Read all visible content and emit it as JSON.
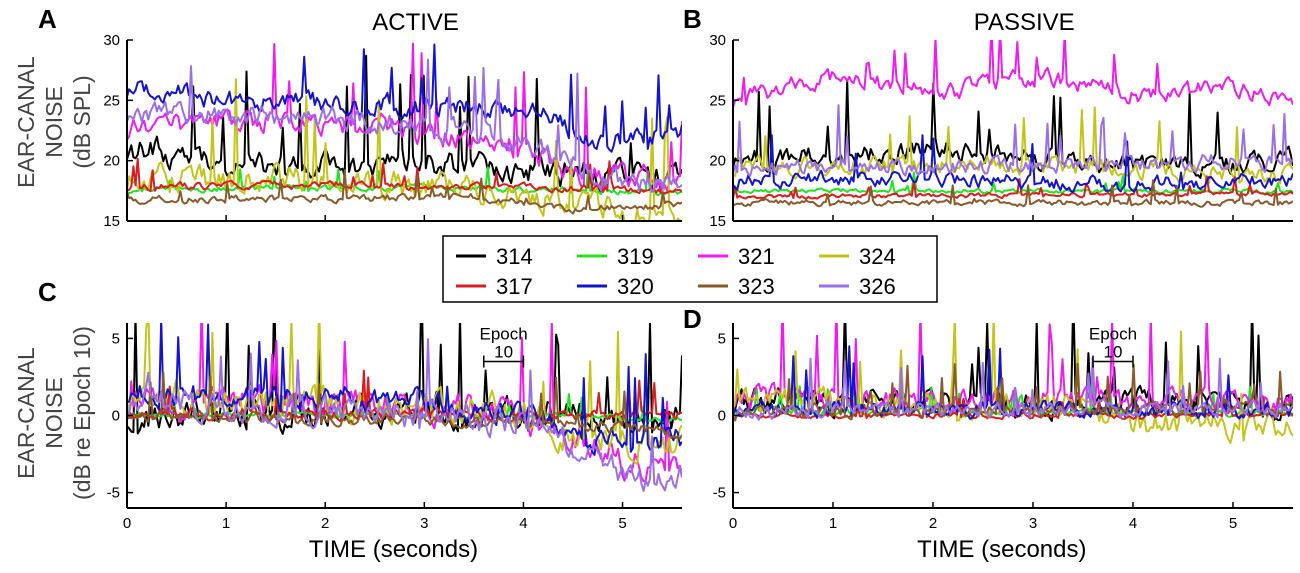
{
  "legend": {
    "entries": [
      {
        "label": "314",
        "color": "#000000"
      },
      {
        "label": "319",
        "color": "#1ee61e"
      },
      {
        "label": "321",
        "color": "#ee1cee"
      },
      {
        "label": "324",
        "color": "#c4c41a"
      },
      {
        "label": "317",
        "color": "#d81e1e"
      },
      {
        "label": "320",
        "color": "#1414cc"
      },
      {
        "label": "323",
        "color": "#8b5a2b"
      },
      {
        "label": "326",
        "color": "#9b6fe6"
      }
    ]
  },
  "y_axis_labels": {
    "top": {
      "line1": "EAR-CANAL",
      "line2": "NOISE",
      "line3": "(dB SPL)"
    },
    "bottom": {
      "line1": "EAR-CANAL",
      "line2": "NOISE",
      "line3": "(dB re Epoch 10)"
    }
  },
  "chart_data": [
    {
      "panel": "A",
      "type": "line",
      "title": "ACTIVE",
      "xlabel": "",
      "ylabel": "EAR-CANAL NOISE (dB SPL)",
      "xlim": [
        0,
        5.6
      ],
      "ylim": [
        15,
        30
      ],
      "xticks": [],
      "yticks": [
        15,
        20,
        25,
        30
      ],
      "yticklabels": [
        "15",
        "20",
        "25",
        "30"
      ],
      "series": [
        {
          "name": "314",
          "levels": [
            [
              0,
              21
            ],
            [
              1.5,
              19.5
            ],
            [
              3,
              20
            ],
            [
              4.2,
              19
            ],
            [
              5.6,
              18.5
            ]
          ],
          "noise": 1.8
        },
        {
          "name": "319",
          "levels": [
            [
              0,
              17.6
            ],
            [
              3,
              17.8
            ],
            [
              5.6,
              17.3
            ]
          ],
          "noise": 0.4
        },
        {
          "name": "321",
          "levels": [
            [
              0,
              22.5
            ],
            [
              1,
              23.5
            ],
            [
              2.5,
              23
            ],
            [
              4,
              21
            ],
            [
              4.5,
              19
            ],
            [
              5.6,
              18.5
            ]
          ],
          "noise": 1.6
        },
        {
          "name": "324",
          "levels": [
            [
              0,
              18.5
            ],
            [
              2,
              18.5
            ],
            [
              3.5,
              17.5
            ],
            [
              4.5,
              16.5
            ],
            [
              5.6,
              15.3
            ]
          ],
          "noise": 1.9
        },
        {
          "name": "317",
          "levels": [
            [
              0,
              17.8
            ],
            [
              2,
              18
            ],
            [
              4,
              17.8
            ],
            [
              5.6,
              17.5
            ]
          ],
          "noise": 0.5
        },
        {
          "name": "320",
          "levels": [
            [
              0,
              26
            ],
            [
              1,
              25
            ],
            [
              3,
              24.5
            ],
            [
              4.3,
              24
            ],
            [
              4.6,
              21.5
            ],
            [
              5.6,
              22.5
            ]
          ],
          "noise": 1.4
        },
        {
          "name": "323",
          "levels": [
            [
              0,
              16.8
            ],
            [
              2,
              16.8
            ],
            [
              3.5,
              17
            ],
            [
              4.5,
              16
            ],
            [
              5.6,
              16.3
            ]
          ],
          "noise": 0.5
        },
        {
          "name": "326",
          "levels": [
            [
              0,
              24
            ],
            [
              2,
              23.5
            ],
            [
              3,
              23
            ],
            [
              4,
              21.5
            ],
            [
              4.8,
              18.5
            ],
            [
              5.6,
              18
            ]
          ],
          "noise": 1.5
        }
      ]
    },
    {
      "panel": "B",
      "type": "line",
      "title": "PASSIVE",
      "xlabel": "",
      "ylabel": "",
      "xlim": [
        0,
        5.6
      ],
      "ylim": [
        15,
        30
      ],
      "xticks": [],
      "yticks": [
        15,
        20,
        25,
        30
      ],
      "yticklabels": [
        "15",
        "20",
        "25",
        "30"
      ],
      "series": [
        {
          "name": "314",
          "levels": [
            [
              0,
              20
            ],
            [
              2,
              21
            ],
            [
              4,
              19.5
            ],
            [
              5.6,
              20
            ]
          ],
          "noise": 1.4
        },
        {
          "name": "319",
          "levels": [
            [
              0,
              17.5
            ],
            [
              5.6,
              17.5
            ]
          ],
          "noise": 0.3
        },
        {
          "name": "321",
          "levels": [
            [
              0,
              25
            ],
            [
              1,
              27
            ],
            [
              2,
              25.5
            ],
            [
              3,
              27
            ],
            [
              4,
              25.5
            ],
            [
              5,
              26
            ],
            [
              5.6,
              25
            ]
          ],
          "noise": 1.2
        },
        {
          "name": "324",
          "levels": [
            [
              0,
              19.5
            ],
            [
              3,
              19.5
            ],
            [
              5.6,
              19
            ]
          ],
          "noise": 1.3
        },
        {
          "name": "317",
          "levels": [
            [
              0,
              17
            ],
            [
              5.6,
              17.3
            ]
          ],
          "noise": 0.3
        },
        {
          "name": "320",
          "levels": [
            [
              0,
              18.5
            ],
            [
              2,
              18.5
            ],
            [
              4,
              18
            ],
            [
              5.6,
              18.5
            ]
          ],
          "noise": 1.0
        },
        {
          "name": "323",
          "levels": [
            [
              0,
              16.5
            ],
            [
              5.6,
              16.5
            ]
          ],
          "noise": 0.4
        },
        {
          "name": "326",
          "levels": [
            [
              0,
              19.5
            ],
            [
              2,
              19.5
            ],
            [
              5.6,
              20
            ]
          ],
          "noise": 1.1
        }
      ]
    },
    {
      "panel": "C",
      "type": "line",
      "title": "",
      "xlabel": "TIME (seconds)",
      "ylabel": "EAR-CANAL NOISE (dB re Epoch 10)",
      "xlim": [
        0,
        5.6
      ],
      "ylim": [
        -6,
        6
      ],
      "xticks": [
        0,
        1,
        2,
        3,
        4,
        5
      ],
      "xticklabels": [
        "0",
        "1",
        "2",
        "3",
        "4",
        "5"
      ],
      "yticks": [
        -5,
        0,
        5
      ],
      "yticklabels": [
        "-5",
        "0",
        "5"
      ],
      "annotation": {
        "text_line1": "Epoch",
        "text_line2": "10",
        "x_start": 3.6,
        "x_end": 4.0,
        "y": 3.5
      },
      "series": [
        {
          "name": "314",
          "levels": [
            [
              0,
              0.2
            ],
            [
              3.5,
              0.3
            ],
            [
              4.5,
              0
            ],
            [
              5.6,
              -0.3
            ]
          ],
          "noise": 1.8
        },
        {
          "name": "319",
          "levels": [
            [
              0,
              0
            ],
            [
              4.5,
              0
            ],
            [
              5.6,
              -0.3
            ]
          ],
          "noise": 0.3
        },
        {
          "name": "321",
          "levels": [
            [
              0,
              1
            ],
            [
              3.5,
              0.5
            ],
            [
              4,
              0
            ],
            [
              4.6,
              -1.5
            ],
            [
              5,
              -3
            ],
            [
              5.6,
              -3
            ]
          ],
          "noise": 1.6
        },
        {
          "name": "324",
          "levels": [
            [
              0,
              1.2
            ],
            [
              3.5,
              0.5
            ],
            [
              4.5,
              -1
            ],
            [
              5.6,
              -2
            ]
          ],
          "noise": 1.8
        },
        {
          "name": "317",
          "levels": [
            [
              0,
              0.2
            ],
            [
              4.5,
              0
            ],
            [
              5.6,
              0
            ]
          ],
          "noise": 0.6
        },
        {
          "name": "320",
          "levels": [
            [
              0,
              1.5
            ],
            [
              3,
              0.8
            ],
            [
              4,
              0.3
            ],
            [
              4.6,
              -1.5
            ],
            [
              5.6,
              -1.5
            ]
          ],
          "noise": 1.3
        },
        {
          "name": "323",
          "levels": [
            [
              0,
              0
            ],
            [
              4.5,
              -0.5
            ],
            [
              5.6,
              -1.2
            ]
          ],
          "noise": 0.6
        },
        {
          "name": "326",
          "levels": [
            [
              0,
              1
            ],
            [
              3,
              0
            ],
            [
              4,
              -0.5
            ],
            [
              4.8,
              -3
            ],
            [
              5.2,
              -4.5
            ],
            [
              5.6,
              -4
            ]
          ],
          "noise": 1.4
        }
      ]
    },
    {
      "panel": "D",
      "type": "line",
      "title": "",
      "xlabel": "TIME (seconds)",
      "ylabel": "",
      "xlim": [
        0,
        5.6
      ],
      "ylim": [
        -6,
        6
      ],
      "xticks": [
        0,
        1,
        2,
        3,
        4,
        5
      ],
      "xticklabels": [
        "0",
        "1",
        "2",
        "3",
        "4",
        "5"
      ],
      "yticks": [
        -5,
        0,
        5
      ],
      "yticklabels": [
        "-5",
        "0",
        "5"
      ],
      "annotation": {
        "text_line1": "Epoch",
        "text_line2": "10",
        "x_start": 3.6,
        "x_end": 4.0,
        "y": 3.5
      },
      "series": [
        {
          "name": "314",
          "levels": [
            [
              0,
              0.8
            ],
            [
              3,
              0.8
            ],
            [
              5.6,
              0.8
            ]
          ],
          "noise": 1.4
        },
        {
          "name": "319",
          "levels": [
            [
              0,
              0.2
            ],
            [
              5.6,
              0.2
            ]
          ],
          "noise": 0.4
        },
        {
          "name": "321",
          "levels": [
            [
              0,
              1.2
            ],
            [
              3,
              1
            ],
            [
              5.6,
              1
            ]
          ],
          "noise": 1.3
        },
        {
          "name": "324",
          "levels": [
            [
              0,
              1
            ],
            [
              3.5,
              0.5
            ],
            [
              4,
              -0.5
            ],
            [
              5.6,
              -0.6
            ]
          ],
          "noise": 1.4
        },
        {
          "name": "317",
          "levels": [
            [
              0,
              0
            ],
            [
              5.6,
              0
            ]
          ],
          "noise": 0.3
        },
        {
          "name": "320",
          "levels": [
            [
              0,
              0.5
            ],
            [
              5.6,
              0.3
            ]
          ],
          "noise": 0.9
        },
        {
          "name": "323",
          "levels": [
            [
              0,
              0.2
            ],
            [
              5.6,
              0.5
            ]
          ],
          "noise": 0.7
        },
        {
          "name": "326",
          "levels": [
            [
              0,
              0.3
            ],
            [
              5.6,
              0.4
            ]
          ],
          "noise": 0.8
        }
      ]
    }
  ]
}
